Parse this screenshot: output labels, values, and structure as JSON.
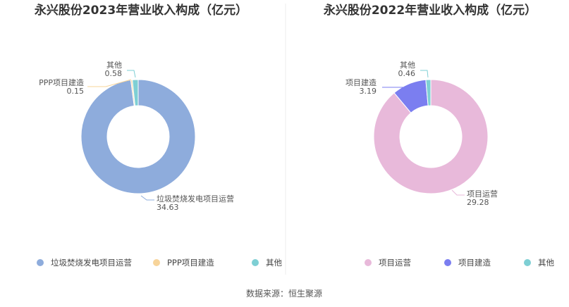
{
  "chart_data": [
    {
      "type": "pie",
      "title": "永兴股份2023年营业收入构成（亿元）",
      "slices": [
        {
          "name": "垃圾焚烧发电项目运营",
          "value": 34.63,
          "label": "34.63",
          "color": "#8eacdc"
        },
        {
          "name": "PPP项目建造",
          "value": 0.15,
          "label": "0.15",
          "color": "#f7d49a"
        },
        {
          "name": "其他",
          "value": 0.58,
          "label": "0.58",
          "color": "#7ecfd4"
        }
      ],
      "legend_position": "bottom"
    },
    {
      "type": "pie",
      "title": "永兴股份2022年营业收入构成（亿元）",
      "slices": [
        {
          "name": "项目运营",
          "value": 29.28,
          "label": "29.28",
          "color": "#e8b9da"
        },
        {
          "name": "项目建造",
          "value": 3.19,
          "label": "3.19",
          "color": "#7b7ef0"
        },
        {
          "name": "其他",
          "value": 0.46,
          "label": "0.46",
          "color": "#7ecfd4"
        }
      ],
      "legend_position": "bottom"
    }
  ],
  "source": "数据来源：恒生聚源"
}
